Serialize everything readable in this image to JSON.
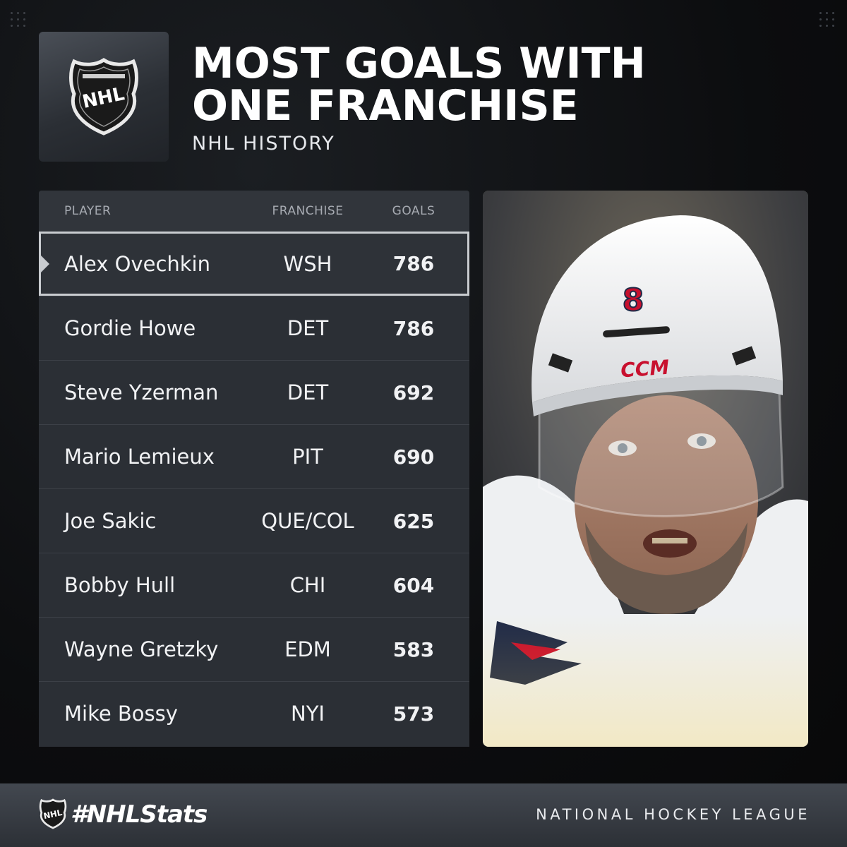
{
  "header": {
    "title_line1": "MOST GOALS WITH",
    "title_line2": "ONE FRANCHISE",
    "subtitle": "NHL HISTORY",
    "logo_text": "NHL"
  },
  "table": {
    "columns": {
      "player": "PLAYER",
      "franchise": "FRANCHISE",
      "goals": "GOALS"
    },
    "rows": [
      {
        "player": "Alex Ovechkin",
        "franchise": "WSH",
        "goals": "786"
      },
      {
        "player": "Gordie Howe",
        "franchise": "DET",
        "goals": "786"
      },
      {
        "player": "Steve Yzerman",
        "franchise": "DET",
        "goals": "692"
      },
      {
        "player": "Mario Lemieux",
        "franchise": "PIT",
        "goals": "690"
      },
      {
        "player": "Joe Sakic",
        "franchise": "QUE/COL",
        "goals": "625"
      },
      {
        "player": "Bobby Hull",
        "franchise": "CHI",
        "goals": "604"
      },
      {
        "player": "Wayne Gretzky",
        "franchise": "EDM",
        "goals": "583"
      },
      {
        "player": "Mike Bossy",
        "franchise": "NYI",
        "goals": "573"
      }
    ]
  },
  "photo": {
    "helmet_number": "8",
    "helmet_brand": "CCM"
  },
  "footer": {
    "hashtag": "#NHLStats",
    "league": "NATIONAL HOCKEY LEAGUE",
    "logo_text": "NHL"
  },
  "colors": {
    "background": "#0c0d0f",
    "table_bg": "#2b2f35",
    "highlight_border": "#c9ccd0",
    "header_text": "#a7abb2"
  }
}
